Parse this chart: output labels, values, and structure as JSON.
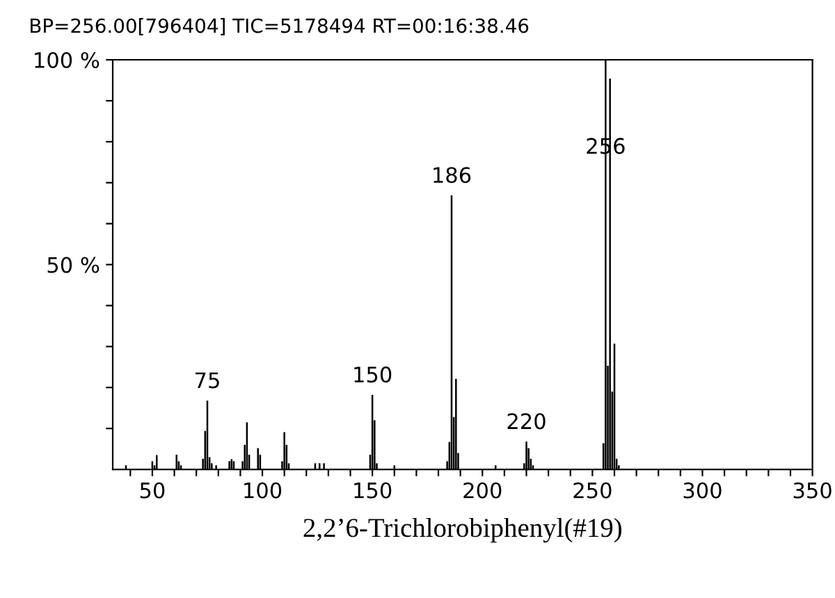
{
  "chart_data": {
    "type": "bar",
    "title": "BP=256.00[796404] TIC=5178494 RT=00:16:38.46",
    "xlabel": "2,2’6-Trichlorobiphenyl(#19)",
    "x": [
      38,
      50,
      51,
      52,
      61,
      62,
      63,
      73,
      74,
      75,
      76,
      77,
      79,
      85,
      86,
      87,
      91,
      92,
      93,
      94,
      98,
      99,
      109,
      110,
      111,
      112,
      124,
      126,
      128,
      149,
      150,
      151,
      152,
      160,
      184,
      185,
      186,
      187,
      188,
      189,
      206,
      219,
      220,
      221,
      222,
      223,
      255,
      256,
      257,
      258,
      259,
      260,
      261,
      262
    ],
    "values": [
      1,
      2,
      1,
      3.5,
      3.6,
      2,
      1,
      2.6,
      9.4,
      16.8,
      3,
      1.5,
      1,
      2,
      2.5,
      2,
      2,
      6,
      11.5,
      3.6,
      5.2,
      3.6,
      2,
      9.1,
      6,
      1.5,
      1.5,
      1.5,
      1.5,
      3.6,
      18.2,
      12,
      1.5,
      1,
      2,
      6.7,
      66.9,
      12.8,
      22.1,
      4,
      1,
      1.5,
      6.8,
      5.2,
      2.6,
      1,
      6.4,
      100,
      25.3,
      95.4,
      19,
      30.7,
      2.6,
      1
    ],
    "color": "#000000",
    "annotations": [
      {
        "text": "75",
        "x": 75,
        "y": 16.8
      },
      {
        "text": "150",
        "x": 150,
        "y": 18.2
      },
      {
        "text": "186",
        "x": 186,
        "y": 66.9
      },
      {
        "text": "220",
        "x": 220,
        "y": 6.8
      },
      {
        "text": "256",
        "x": 256,
        "y": 74
      }
    ],
    "xlim": [
      32,
      350
    ],
    "xticks": [
      {
        "value": 40,
        "label": null
      },
      50,
      {
        "value": 60,
        "label": null
      },
      {
        "value": 70,
        "label": null
      },
      {
        "value": 80,
        "label": null
      },
      {
        "value": 90,
        "label": null
      },
      100,
      {
        "value": 110,
        "label": null
      },
      {
        "value": 120,
        "label": null
      },
      {
        "value": 130,
        "label": null
      },
      {
        "value": 140,
        "label": null
      },
      150,
      {
        "value": 160,
        "label": null
      },
      {
        "value": 170,
        "label": null
      },
      {
        "value": 180,
        "label": null
      },
      {
        "value": 190,
        "label": null
      },
      200,
      {
        "value": 210,
        "label": null
      },
      {
        "value": 220,
        "label": null
      },
      {
        "value": 230,
        "label": null
      },
      {
        "value": 240,
        "label": null
      },
      250,
      {
        "value": 260,
        "label": null
      },
      {
        "value": 270,
        "label": null
      },
      {
        "value": 280,
        "label": null
      },
      {
        "value": 290,
        "label": null
      },
      300,
      {
        "value": 310,
        "label": null
      },
      {
        "value": 320,
        "label": null
      },
      {
        "value": 330,
        "label": null
      },
      {
        "value": 340,
        "label": null
      },
      350
    ],
    "ylim": [
      0,
      100
    ],
    "yticks": [
      {
        "value": 10,
        "label": null
      },
      {
        "value": 20,
        "label": null
      },
      {
        "value": 30,
        "label": null
      },
      {
        "value": 40,
        "label": null
      },
      {
        "value": 50,
        "label": "50 %"
      },
      {
        "value": 60,
        "label": null
      },
      {
        "value": 70,
        "label": null
      },
      {
        "value": 80,
        "label": null
      },
      {
        "value": 90,
        "label": null
      },
      {
        "value": 100,
        "label": "100 %"
      }
    ],
    "grid": false
  }
}
